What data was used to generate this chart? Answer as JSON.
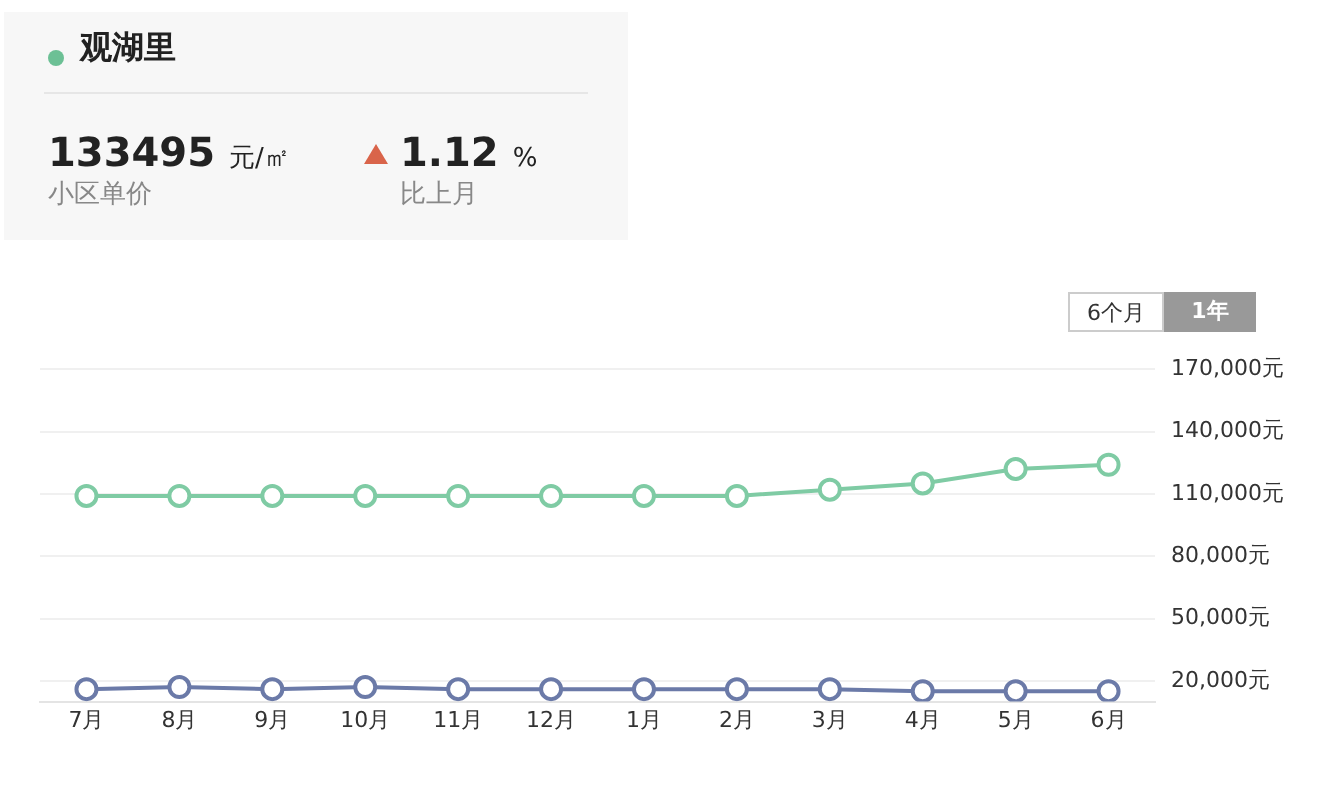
{
  "chart_data": {
    "type": "line",
    "title": "观湖里",
    "annotations": [
      "133495 元/㎡",
      "小区单价",
      "1.12 %",
      "比上月",
      "6个月",
      "1年"
    ],
    "categories": [
      "7月",
      "8月",
      "9月",
      "10月",
      "11月",
      "12月",
      "1月",
      "2月",
      "3月",
      "4月",
      "5月",
      "6月"
    ],
    "series": [
      {
        "color": "#7fcba4",
        "values": [
          109000,
          109000,
          109000,
          109000,
          109000,
          109000,
          109000,
          109000,
          112000,
          115000,
          122000,
          124000
        ]
      },
      {
        "color": "#6b7aa8",
        "values": [
          16000,
          17000,
          16000,
          17000,
          16000,
          16000,
          16000,
          16000,
          16000,
          15000,
          15000,
          15000
        ]
      }
    ],
    "ylim": [
      10000,
      170000
    ],
    "yticks": [
      {
        "value": 20000,
        "label": "20,000元"
      },
      {
        "value": 50000,
        "label": "50,000元"
      },
      {
        "value": 80000,
        "label": "80,000元"
      },
      {
        "value": 110000,
        "label": "110,000元"
      },
      {
        "value": 140000,
        "label": "140,000元"
      },
      {
        "value": 170000,
        "label": "170,000元"
      }
    ],
    "grid": "y",
    "legend": false,
    "marker": "circle",
    "line_style": "solid"
  }
}
